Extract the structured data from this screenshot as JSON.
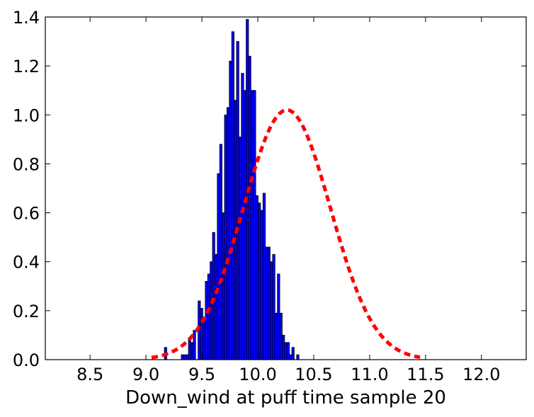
{
  "chart_data": {
    "type": "bar",
    "title": "",
    "xlabel": "Down_wind at puff time sample 20",
    "ylabel": "",
    "xlim": [
      8.1,
      12.4
    ],
    "ylim": [
      0.0,
      1.4
    ],
    "xticks": [
      8.5,
      9.0,
      9.5,
      10.0,
      10.5,
      11.0,
      11.5,
      12.0
    ],
    "xtick_labels": [
      "8.5",
      "9.0",
      "9.5",
      "10.0",
      "10.5",
      "11.0",
      "11.5",
      "12.0"
    ],
    "yticks": [
      0.0,
      0.2,
      0.4,
      0.6,
      0.8,
      1.0,
      1.2,
      1.4
    ],
    "ytick_labels": [
      "0.0",
      "0.2",
      "0.4",
      "0.6",
      "0.8",
      "1.0",
      "1.2",
      "1.4"
    ],
    "grid": false,
    "histogram": {
      "bin_start": 9.1,
      "bin_width": 0.0215,
      "color": "#0000ff",
      "edge_color": "#000000",
      "heights": [
        0.0,
        0.0,
        0.0,
        0.05,
        0.0,
        0.0,
        0.0,
        0.0,
        0.0,
        0.0,
        0.02,
        0.02,
        0.02,
        0.09,
        0.07,
        0.12,
        0.0,
        0.24,
        0.21,
        0.17,
        0.32,
        0.35,
        0.4,
        0.52,
        0.43,
        0.76,
        0.88,
        0.6,
        1.0,
        1.03,
        1.22,
        1.34,
        1.06,
        1.3,
        0.91,
        1.17,
        1.1,
        1.39,
        1.24,
        1.1,
        1.1,
        0.67,
        0.64,
        0.61,
        0.68,
        0.46,
        0.46,
        0.4,
        0.43,
        0.19,
        0.35,
        0.19,
        0.1,
        0.07,
        0.07,
        0.02,
        0.05,
        0.0,
        0.02
      ]
    },
    "fit_curve": {
      "style": "dashed",
      "color": "#ff0000",
      "mean": 10.26,
      "std": 0.39,
      "peak": 1.02,
      "x_range": [
        9.05,
        11.45
      ]
    }
  }
}
